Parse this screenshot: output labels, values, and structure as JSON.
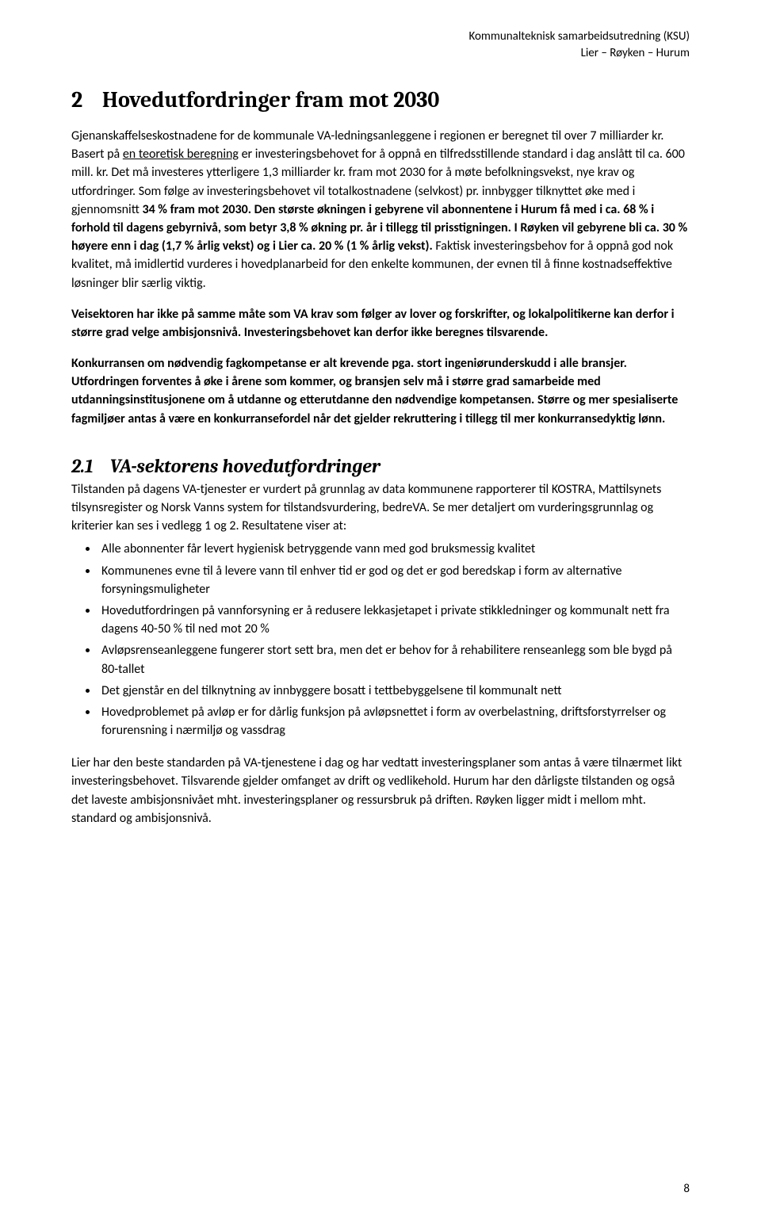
{
  "header": {
    "line1": "Kommunalteknisk samarbeidsutredning (KSU)",
    "line2": "Lier – Røyken – Hurum"
  },
  "section": {
    "number": "2",
    "title": "Hovedutfordringer fram mot 2030"
  },
  "para1": {
    "pre": "Gjenanskaffelseskostnadene for de kommunale VA-ledningsanleggene i regionen er beregnet til over 7 milliarder kr. Basert på ",
    "underlined": "en teoretisk beregning",
    "post": " er investeringsbehovet for å oppnå en tilfredsstillende standard i dag anslått til ca. 600 mill. kr. Det må investeres ytterligere 1,3 milliarder kr. fram mot 2030 for å møte befolkningsvekst, nye krav og utfordringer. Som følge av investeringsbehovet vil totalkostnadene (selvkost) pr. innbygger tilknyttet øke med i gjennomsnitt ",
    "bold1": "34 % fram mot 2030. Den største økningen i gebyrene vil abonnentene i Hurum få med i ca. 68 % i forhold til dagens gebyrnivå, som betyr 3,8 % økning pr. år i tillegg til prisstigningen. I Røyken vil gebyrene bli ca. 30 % høyere enn i dag (1,7 % årlig vekst) og i Lier ca. 20 % (1 % årlig vekst).",
    "after_bold1": " Faktisk investeringsbehov for å oppnå god nok kvalitet, må imidlertid vurderes i hovedplanarbeid for den enkelte kommunen, der evnen til å finne kostnadseffektive løsninger blir særlig viktig."
  },
  "para2": {
    "bold": "Veisektoren har ikke på samme måte som VA krav som følger av lover og forskrifter, og lokalpolitikerne kan derfor i større grad velge ambisjonsnivå. Investeringsbehovet kan derfor ikke beregnes tilsvarende."
  },
  "para3": {
    "bold": "Konkurransen om nødvendig fagkompetanse er alt krevende pga. stort ingeniørunderskudd i alle bransjer. Utfordringen forventes å øke i årene som kommer, og bransjen selv må i større grad samarbeide med utdanningsinstitusjonene om å utdanne og etterutdanne den nødvendige kompetansen. Større og mer spesialiserte fagmiljøer antas å være en konkurransefordel når det gjelder rekruttering i tillegg til mer konkurransedyktig lønn."
  },
  "subsection": {
    "number": "2.1",
    "title": "VA-sektorens hovedutfordringer"
  },
  "para4": "Tilstanden på dagens VA-tjenester er vurdert på grunnlag av data kommunene rapporterer til KOSTRA, Mattilsynets tilsynsregister og Norsk Vanns system for tilstandsvurdering, bedreVA. Se mer detaljert om vurderingsgrunnlag og kriterier kan ses i vedlegg 1 og 2. Resultatene viser at:",
  "bullets": [
    "Alle abonnenter får levert hygienisk betryggende vann med god bruksmessig kvalitet",
    "Kommunenes evne til å levere vann til enhver tid er god og det er god beredskap i form av alternative forsyningsmuligheter",
    "Hovedutfordringen på vannforsyning er å redusere lekkasjetapet i private stikkledninger og kommunalt nett fra dagens 40-50 % til ned mot 20 %",
    "Avløpsrenseanleggene fungerer stort sett bra, men det er behov for å rehabilitere renseanlegg som ble bygd på 80-tallet",
    "Det gjenstår en del tilknytning av innbyggere bosatt i tettbebyggelsene til kommunalt nett",
    "Hovedproblemet på avløp er for dårlig funksjon på avløpsnettet i form av overbelastning, driftsforstyrrelser og forurensning i nærmiljø og vassdrag"
  ],
  "para5": "Lier har den beste standarden på VA-tjenestene i dag og har vedtatt investeringsplaner som antas å være tilnærmet likt investeringsbehovet. Tilsvarende gjelder omfanget av drift og vedlikehold. Hurum har den dårligste tilstanden og også det laveste ambisjonsnivået mht. investeringsplaner og ressursbruk på driften. Røyken ligger midt i mellom mht. standard og ambisjonsnivå.",
  "page_number": "8"
}
